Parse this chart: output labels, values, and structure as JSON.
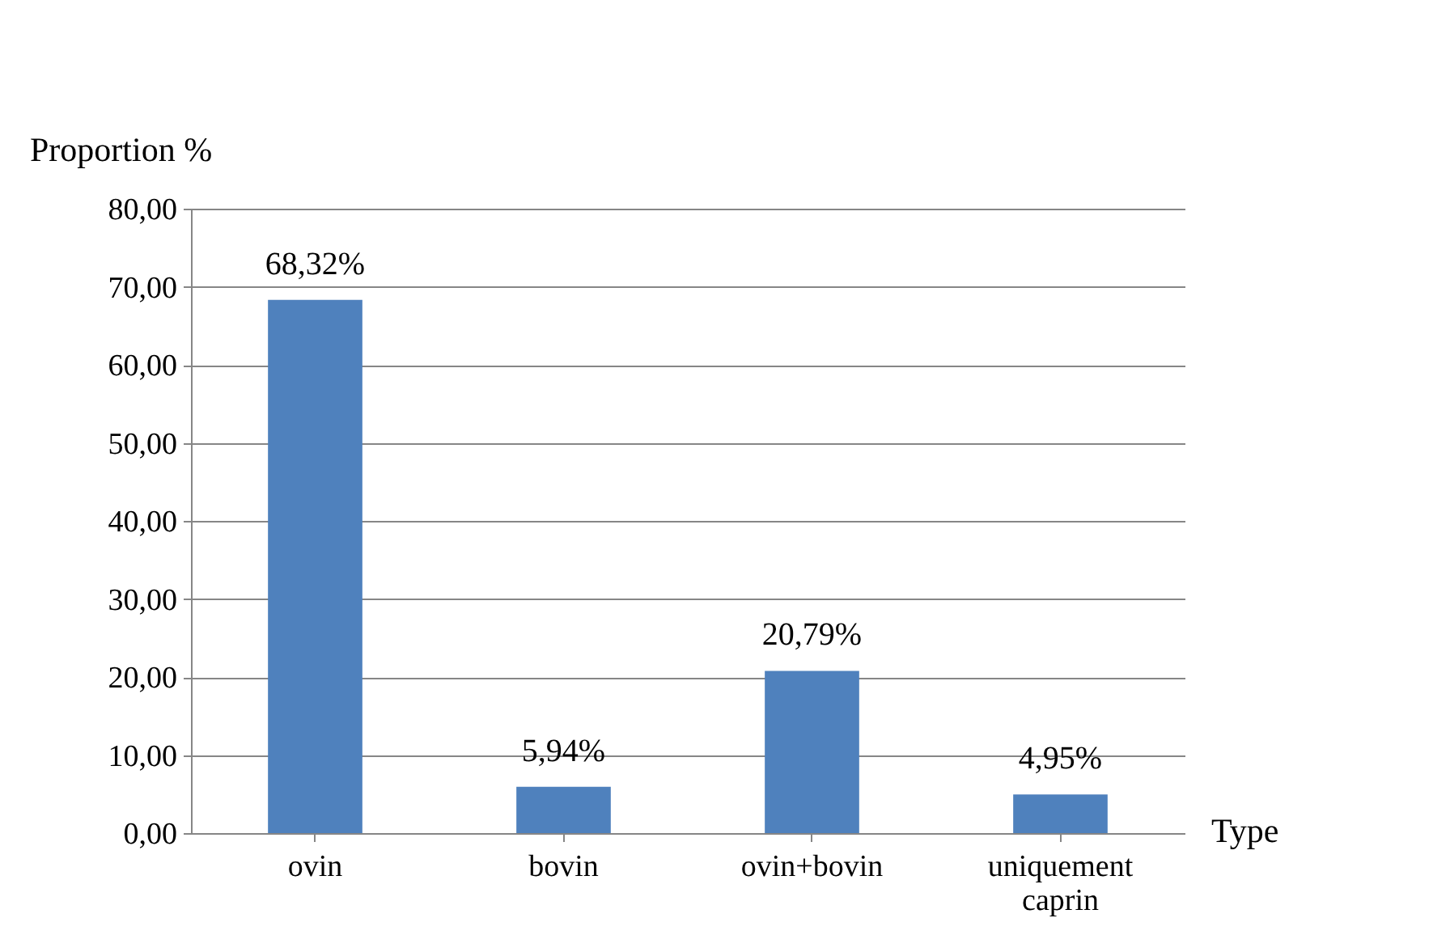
{
  "chart_data": {
    "type": "bar",
    "xlabel": "Type",
    "ylabel": "Proportion %",
    "categories": [
      "ovin",
      "bovin",
      "ovin+bovin",
      "uniquement caprin"
    ],
    "values": [
      68.32,
      5.94,
      20.79,
      4.95
    ],
    "value_labels": [
      "68,32%",
      "5,94%",
      "20,79%",
      "4,95%"
    ],
    "color": "#4f81bd",
    "ylim": [
      0,
      80
    ],
    "yticks": [
      {
        "value": 0,
        "label": "0,00"
      },
      {
        "value": 10,
        "label": "10,00"
      },
      {
        "value": 20,
        "label": "20,00"
      },
      {
        "value": 30,
        "label": "30,00"
      },
      {
        "value": 40,
        "label": "40,00"
      },
      {
        "value": 50,
        "label": "50,00"
      },
      {
        "value": 60,
        "label": "60,00"
      },
      {
        "value": 70,
        "label": "70,00"
      },
      {
        "value": 80,
        "label": "80,00"
      }
    ],
    "grid": "y"
  }
}
